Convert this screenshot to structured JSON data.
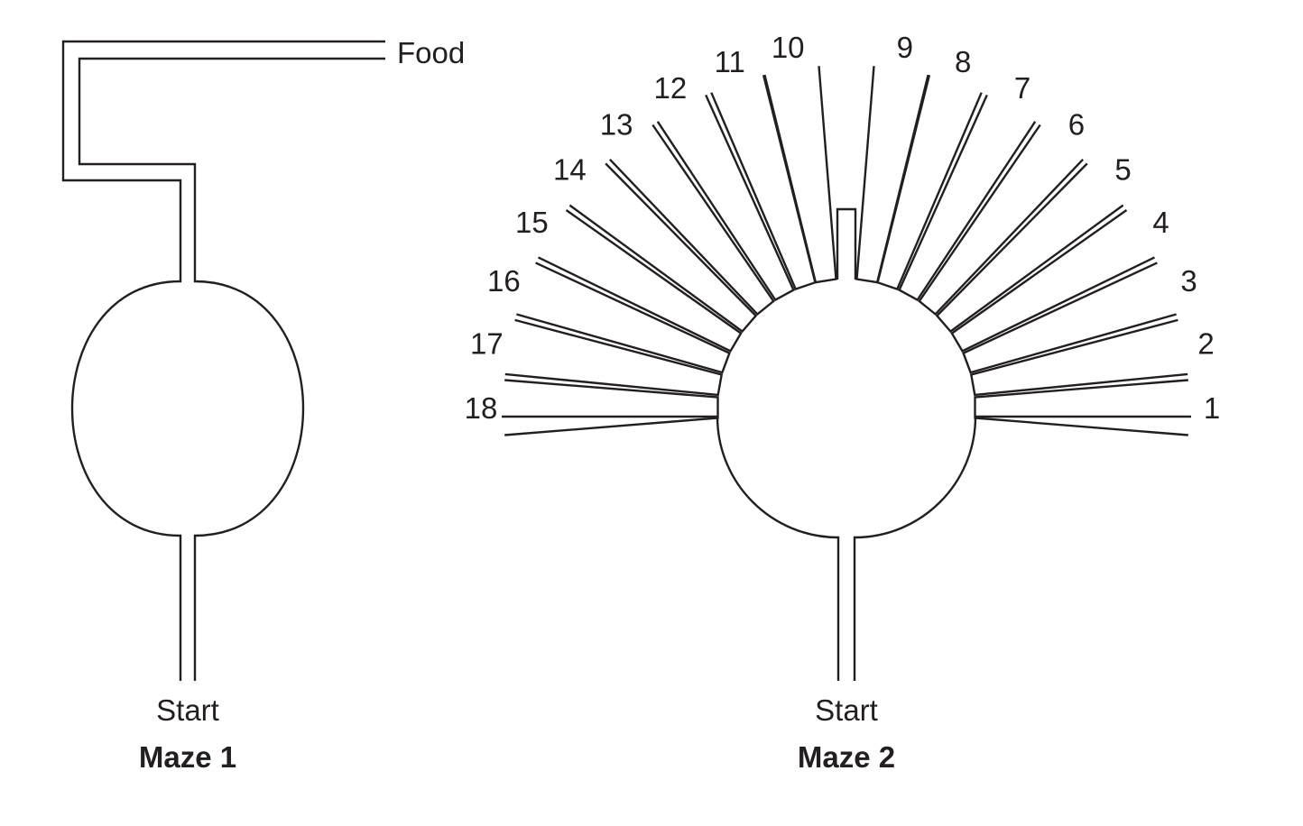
{
  "maze1": {
    "title": "Maze 1",
    "start_label": "Start",
    "food_label": "Food"
  },
  "maze2": {
    "title": "Maze 2",
    "start_label": "Start",
    "arm_labels": [
      "1",
      "2",
      "3",
      "4",
      "5",
      "6",
      "7",
      "8",
      "9",
      "10",
      "11",
      "12",
      "13",
      "14",
      "15",
      "16",
      "17",
      "18"
    ]
  },
  "colors": {
    "line": "#231f20",
    "background": "#ffffff"
  }
}
